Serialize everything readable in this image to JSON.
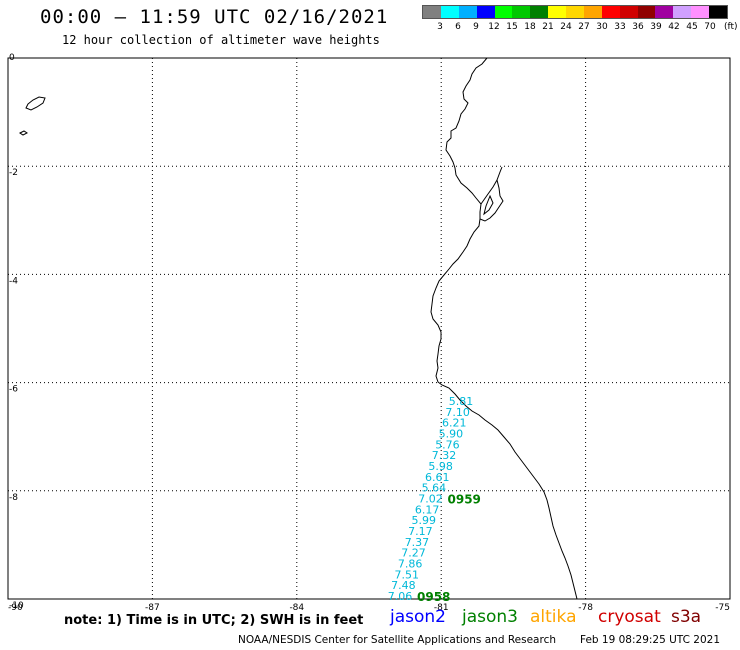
{
  "header": {
    "title": "00:00 – 11:59 UTC 02/16/2021",
    "subtitle": "12 hour collection of altimeter wave heights"
  },
  "legend": {
    "unit": "(ft)",
    "colors": [
      "#808080",
      "#00ffff",
      "#00b0ff",
      "#0000ff",
      "#00ff00",
      "#00c800",
      "#008000",
      "#ffff00",
      "#ffd700",
      "#ffa500",
      "#ff0000",
      "#d00000",
      "#900000",
      "#a000a0",
      "#d0a0ff",
      "#ff90ff",
      "#000000"
    ],
    "labels": [
      "3",
      "6",
      "9",
      "12",
      "15",
      "18",
      "21",
      "24",
      "27",
      "30",
      "33",
      "36",
      "39",
      "42",
      "45",
      "70"
    ]
  },
  "axes": {
    "lon_ticks": [
      "-90",
      "-87",
      "-84",
      "-81",
      "-78",
      "-75"
    ],
    "lat_ticks": [
      "0",
      "-2",
      "-4",
      "-6",
      "-8",
      "-10"
    ],
    "lon_values": [
      -90,
      -87,
      -84,
      -81,
      -78,
      -75
    ],
    "lat_values": [
      0,
      -2,
      -4,
      -6,
      -8,
      -10
    ]
  },
  "track": {
    "satellite": "jason3",
    "color": "#00b8d8",
    "time_color": "#008000",
    "values": [
      "5.81",
      "7.10",
      "6.21",
      "5.90",
      "5.76",
      "7.32",
      "5.98",
      "6.61",
      "5.64",
      "7.02",
      "6.17",
      "5.99",
      "7.17",
      "7.37",
      "7.27",
      "7.86",
      "7.51",
      "7.48",
      "7.06"
    ],
    "times": [
      {
        "label": "0959",
        "index": 9
      },
      {
        "label": "0958",
        "index": 18
      }
    ]
  },
  "footer": {
    "note": "note:  1) Time is in UTC;  2) SWH is in feet",
    "satellites": [
      {
        "name": "jason2",
        "color": "#0000ff"
      },
      {
        "name": "jason3",
        "color": "#008000"
      },
      {
        "name": "altika",
        "color": "#ffa500"
      },
      {
        "name": "cryosat",
        "color": "#d00000"
      },
      {
        "name": "s3a",
        "color": "#800000"
      }
    ],
    "credit": "NOAA/NESDIS Center for Satellite Applications and Research",
    "credit_time": "Feb 19 08:29:25 UTC 2021"
  }
}
